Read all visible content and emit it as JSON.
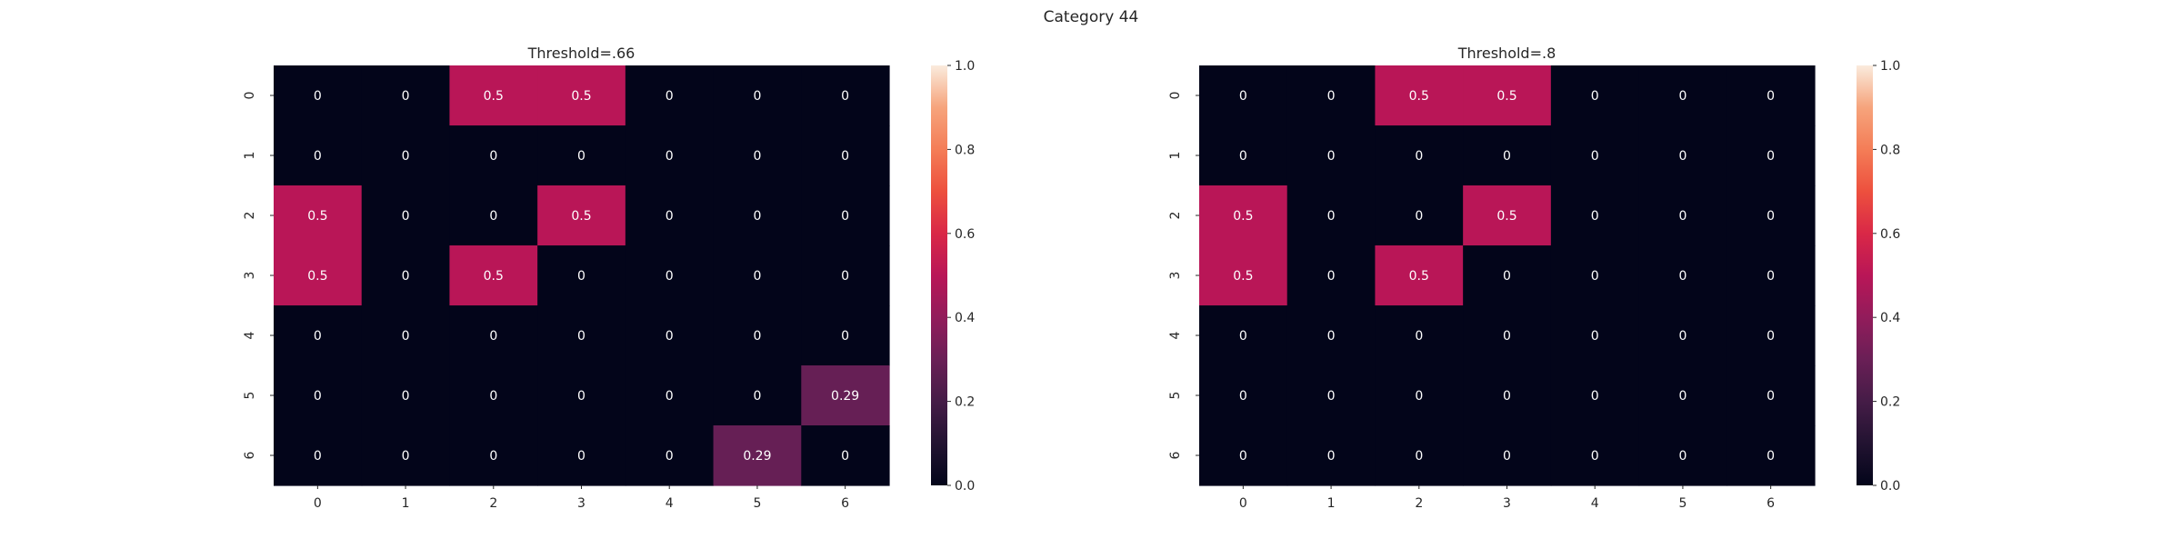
{
  "figure": {
    "suptitle": "Category 44"
  },
  "colorbar": {
    "ticks": [
      "0.0",
      "0.2",
      "0.4",
      "0.6",
      "0.8",
      "1.0"
    ]
  },
  "chart_data": [
    {
      "type": "heatmap",
      "title": "Threshold=.66",
      "x_labels": [
        "0",
        "1",
        "2",
        "3",
        "4",
        "5",
        "6"
      ],
      "y_labels": [
        "0",
        "1",
        "2",
        "3",
        "4",
        "5",
        "6"
      ],
      "values": [
        [
          0,
          0,
          0.5,
          0.5,
          0,
          0,
          0
        ],
        [
          0,
          0,
          0,
          0,
          0,
          0,
          0
        ],
        [
          0.5,
          0,
          0,
          0.5,
          0,
          0,
          0
        ],
        [
          0.5,
          0,
          0.5,
          0,
          0,
          0,
          0
        ],
        [
          0,
          0,
          0,
          0,
          0,
          0,
          0
        ],
        [
          0,
          0,
          0,
          0,
          0,
          0,
          0.29
        ],
        [
          0,
          0,
          0,
          0,
          0,
          0.29,
          0
        ]
      ],
      "vmin": 0.0,
      "vmax": 1.0,
      "colormap": "rocket",
      "annotations": true
    },
    {
      "type": "heatmap",
      "title": "Threshold=.8",
      "x_labels": [
        "0",
        "1",
        "2",
        "3",
        "4",
        "5",
        "6"
      ],
      "y_labels": [
        "0",
        "1",
        "2",
        "3",
        "4",
        "5",
        "6"
      ],
      "values": [
        [
          0,
          0,
          0.5,
          0.5,
          0,
          0,
          0
        ],
        [
          0,
          0,
          0,
          0,
          0,
          0,
          0
        ],
        [
          0.5,
          0,
          0,
          0.5,
          0,
          0,
          0
        ],
        [
          0.5,
          0,
          0.5,
          0,
          0,
          0,
          0
        ],
        [
          0,
          0,
          0,
          0,
          0,
          0,
          0
        ],
        [
          0,
          0,
          0,
          0,
          0,
          0,
          0
        ],
        [
          0,
          0,
          0,
          0,
          0,
          0,
          0
        ]
      ],
      "vmin": 0.0,
      "vmax": 1.0,
      "colormap": "rocket",
      "annotations": true
    }
  ]
}
